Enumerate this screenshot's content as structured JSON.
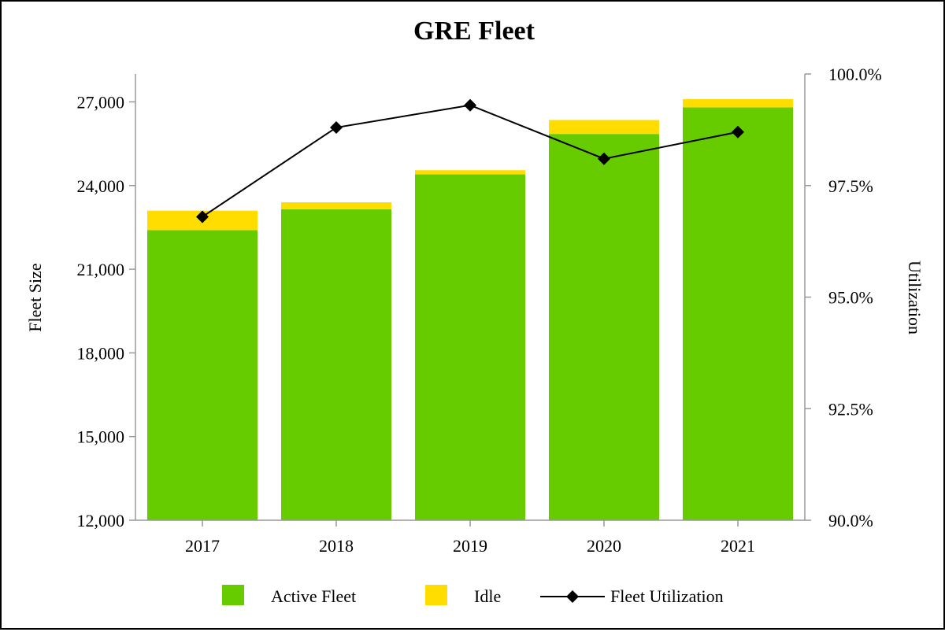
{
  "chart_data": {
    "type": "bar",
    "title": "GRE Fleet",
    "xlabel": "",
    "ylabel": "Fleet Size",
    "y2label": "Utilization",
    "categories": [
      "2017",
      "2018",
      "2019",
      "2020",
      "2021"
    ],
    "ylim": [
      12000,
      28000
    ],
    "yticks": [
      "12,000",
      "15,000",
      "18,000",
      "21,000",
      "24,000",
      "27,000"
    ],
    "y2lim": [
      90.0,
      100.0
    ],
    "y2ticks": [
      "90.0%",
      "92.5%",
      "95.0%",
      "97.5%",
      "100.0%"
    ],
    "stacked": true,
    "series": [
      {
        "name": "Active Fleet",
        "kind": "bar",
        "color": "#66cc00",
        "values": [
          22400,
          23150,
          24400,
          25850,
          26800
        ]
      },
      {
        "name": "Idle",
        "kind": "bar",
        "color": "#ffdd00",
        "values": [
          700,
          250,
          150,
          500,
          300
        ]
      },
      {
        "name": "Fleet Utilization",
        "kind": "line",
        "axis": "right",
        "color": "#000000",
        "marker": "diamond",
        "values": [
          96.8,
          98.8,
          99.3,
          98.1,
          98.7
        ]
      }
    ],
    "grid": false,
    "legend": "bottom"
  }
}
